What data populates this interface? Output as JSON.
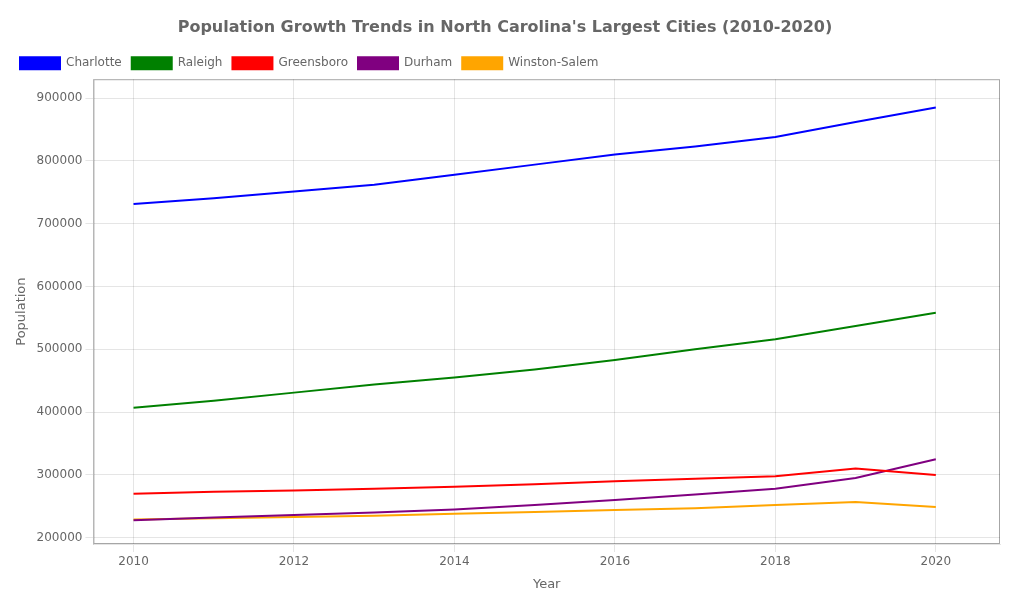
{
  "chart_data": {
    "type": "line",
    "title": "Population Growth Trends in North Carolina's Largest Cities (2010-2020)",
    "xlabel": "Year",
    "ylabel": "Population",
    "x": [
      2010,
      2011,
      2012,
      2013,
      2014,
      2015,
      2016,
      2017,
      2018,
      2019,
      2020
    ],
    "series": [
      {
        "name": "Charlotte",
        "color": "#0000ff",
        "values": [
          731424,
          740318,
          751087,
          762000,
          778000,
          794000,
          810000,
          823000,
          838000,
          862000,
          885000
        ]
      },
      {
        "name": "Raleigh",
        "color": "#008000",
        "values": [
          407000,
          418000,
          431000,
          444000,
          455000,
          468000,
          483000,
          500000,
          516000,
          537000,
          558000
        ]
      },
      {
        "name": "Greensboro",
        "color": "#ff0000",
        "values": [
          270000,
          273000,
          275000,
          278000,
          281000,
          285000,
          290000,
          294000,
          298000,
          310000,
          300000
        ]
      },
      {
        "name": "Durham",
        "color": "#800080",
        "values": [
          228000,
          232000,
          236000,
          240000,
          245000,
          252000,
          260000,
          269000,
          278000,
          295000,
          325000
        ]
      },
      {
        "name": "Winston-Salem",
        "color": "#ffa500",
        "values": [
          229000,
          231000,
          233000,
          235000,
          238000,
          241000,
          244000,
          247000,
          252000,
          257000,
          249000
        ]
      }
    ],
    "xlim": [
      2009.5,
      2020.8
    ],
    "ylim": [
      190000,
      930000
    ],
    "xticks": [
      2010,
      2012,
      2014,
      2016,
      2018,
      2020
    ],
    "yticks": [
      200000,
      300000,
      400000,
      500000,
      600000,
      700000,
      800000,
      900000
    ],
    "grid": true,
    "legend": "upper left"
  }
}
